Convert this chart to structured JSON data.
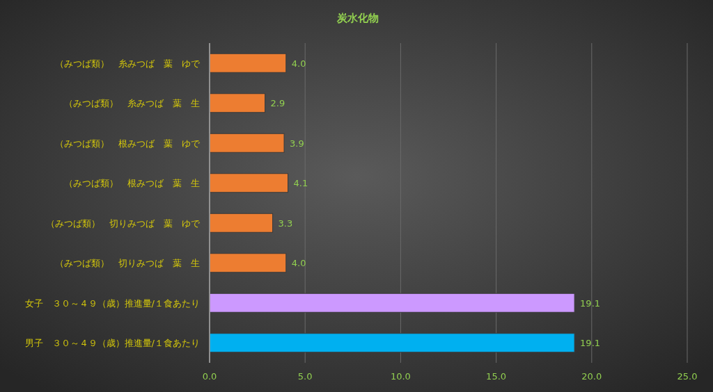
{
  "chart_data": {
    "type": "bar",
    "orientation": "horizontal",
    "title": "炭水化物",
    "categories": [
      "（みつば類）　糸みつば　葉　ゆで",
      "（みつば類）　糸みつば　葉　生",
      "（みつば類）　根みつば　葉　ゆで",
      "（みつば類）　根みつば　葉　生",
      "（みつば類）　切りみつば　葉　ゆで",
      "（みつば類）　切りみつば　葉　生",
      "女子　３０～４９（歳）推進量/１食あたり",
      "男子　３０～４９（歳）推進量/１食あたり"
    ],
    "values": [
      4.0,
      2.9,
      3.9,
      4.1,
      3.3,
      4.0,
      19.1,
      19.1
    ],
    "colors": [
      "#ed7d31",
      "#ed7d31",
      "#ed7d31",
      "#ed7d31",
      "#ed7d31",
      "#ed7d31",
      "#cc99ff",
      "#00b0f0"
    ],
    "value_labels": [
      "4.0",
      "2.9",
      "3.9",
      "4.1",
      "3.3",
      "4.0",
      "19.1",
      "19.1"
    ],
    "xlim": [
      0,
      25
    ],
    "xticks": [
      {
        "value": 0,
        "label": "0.0"
      },
      {
        "value": 5,
        "label": "5.0"
      },
      {
        "value": 10,
        "label": "10.0"
      },
      {
        "value": 15,
        "label": "15.0"
      },
      {
        "value": 20,
        "label": "20.0"
      },
      {
        "value": 25,
        "label": "25.0"
      }
    ],
    "grid": "x"
  }
}
